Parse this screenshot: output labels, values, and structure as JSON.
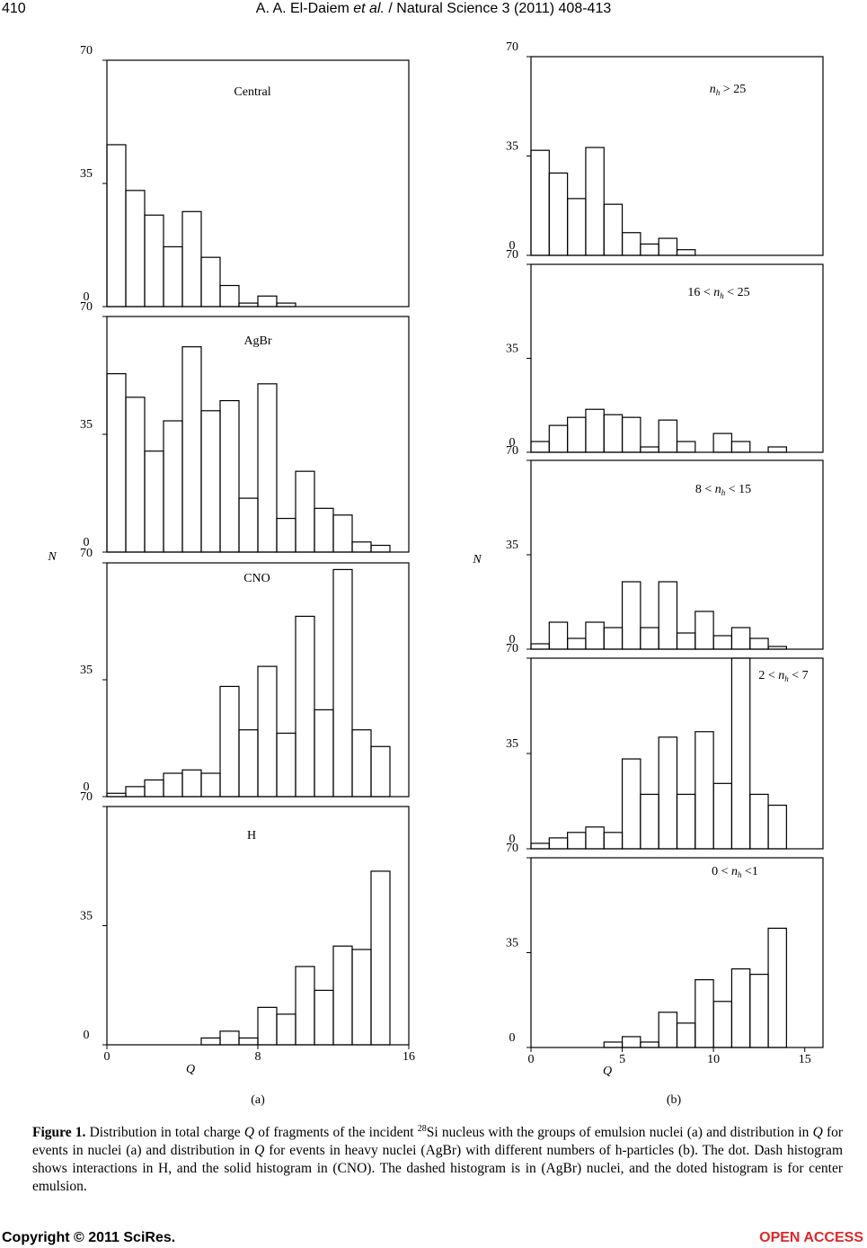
{
  "header": {
    "page": "410",
    "title": [
      {
        "text": "A. A. El-Daiem "
      },
      {
        "text": "et al.",
        "style": "italic"
      },
      {
        "text": " / Natural Science 3 (2011) 408-413"
      }
    ]
  },
  "chart_data": [
    {
      "type": "histogram",
      "title": "Central",
      "bins": [
        0,
        1,
        2,
        3,
        4,
        5,
        6,
        7,
        8,
        9,
        10,
        11,
        12,
        13,
        14,
        15,
        16
      ],
      "values": [
        46,
        33,
        26,
        17,
        27,
        14,
        6,
        1,
        3,
        1,
        0,
        0,
        0,
        0,
        0,
        0
      ],
      "xlim": [
        0,
        16
      ],
      "ylim": [
        0,
        70
      ],
      "yticks": [
        0,
        35,
        70
      ]
    },
    {
      "type": "histogram",
      "title": "AgBr",
      "bins": [
        0,
        1,
        2,
        3,
        4,
        5,
        6,
        7,
        8,
        9,
        10,
        11,
        12,
        13,
        14,
        15,
        16
      ],
      "values": [
        53,
        46,
        30,
        39,
        61,
        42,
        45,
        16,
        50,
        10,
        24,
        13,
        11,
        3,
        2,
        0
      ],
      "xlim": [
        0,
        16
      ],
      "ylim": [
        0,
        70
      ],
      "yticks": [
        0,
        35,
        70
      ]
    },
    {
      "type": "histogram",
      "title": "CNO",
      "bins": [
        0,
        1,
        2,
        3,
        4,
        5,
        6,
        7,
        8,
        9,
        10,
        11,
        12,
        13,
        14,
        15,
        16
      ],
      "values": [
        1,
        3,
        5,
        7,
        8,
        7,
        33,
        20,
        39,
        19,
        54,
        26,
        68,
        20,
        15,
        0
      ],
      "xlim": [
        0,
        16
      ],
      "ylim": [
        0,
        70
      ],
      "yticks": [
        0,
        35,
        70
      ]
    },
    {
      "type": "histogram",
      "title": "H",
      "bins": [
        0,
        1,
        2,
        3,
        4,
        5,
        6,
        7,
        8,
        9,
        10,
        11,
        12,
        13,
        14,
        15,
        16
      ],
      "values": [
        0,
        0,
        0,
        0,
        0,
        2,
        4,
        2,
        11,
        9,
        23,
        16,
        29,
        28,
        51,
        0
      ],
      "xlim": [
        0,
        16
      ],
      "ylim": [
        0,
        70
      ],
      "yticks": [
        0,
        35,
        70
      ],
      "xticks": [
        0,
        8,
        16
      ]
    },
    {
      "type": "histogram",
      "title": {
        "symbol": "n",
        "subscript": "h",
        "suffix": " > 25"
      },
      "bins": [
        0,
        1,
        2,
        3,
        4,
        5,
        6,
        7,
        8,
        9,
        10,
        11,
        12,
        13,
        14
      ],
      "values": [
        37,
        29,
        20,
        38,
        18,
        8,
        4,
        6,
        2,
        0,
        0,
        0,
        0,
        0
      ],
      "xlim": [
        0,
        16
      ],
      "ylim": [
        0,
        70
      ],
      "yticks": [
        0,
        35,
        70
      ]
    },
    {
      "type": "histogram",
      "title": {
        "prefix": "16 < ",
        "symbol": "n",
        "subscript": "h",
        "suffix": " < 25"
      },
      "bins": [
        0,
        1,
        2,
        3,
        4,
        5,
        6,
        7,
        8,
        9,
        10,
        11,
        12,
        13,
        14
      ],
      "values": [
        4,
        10,
        13,
        16,
        14,
        13,
        2,
        12,
        4,
        0,
        7,
        4,
        0,
        2
      ],
      "xlim": [
        0,
        16
      ],
      "ylim": [
        0,
        70
      ],
      "yticks": [
        0,
        35,
        70
      ]
    },
    {
      "type": "histogram",
      "title": {
        "prefix": "8 < ",
        "symbol": "n",
        "subscript": "h",
        "suffix": " < 15"
      },
      "bins": [
        0,
        1,
        2,
        3,
        4,
        5,
        6,
        7,
        8,
        9,
        10,
        11,
        12,
        13,
        14
      ],
      "values": [
        2,
        10,
        4,
        10,
        8,
        25,
        8,
        25,
        6,
        14,
        5,
        8,
        4,
        1
      ],
      "xlim": [
        0,
        16
      ],
      "ylim": [
        0,
        70
      ],
      "yticks": [
        0,
        35,
        70
      ]
    },
    {
      "type": "histogram",
      "title": {
        "prefix": "2 < ",
        "symbol": "n",
        "subscript": "h",
        "suffix": " < 7"
      },
      "bins": [
        0,
        1,
        2,
        3,
        4,
        5,
        6,
        7,
        8,
        9,
        10,
        11,
        12,
        13,
        14
      ],
      "values": [
        2,
        4,
        6,
        8,
        6,
        33,
        20,
        41,
        20,
        43,
        24,
        70,
        20,
        16
      ],
      "xlim": [
        0,
        16
      ],
      "ylim": [
        0,
        70
      ],
      "yticks": [
        0,
        35,
        70
      ]
    },
    {
      "type": "histogram",
      "title": {
        "prefix": "0 < ",
        "symbol": "n",
        "subscript": "h",
        "suffix": " <1"
      },
      "bins": [
        0,
        1,
        2,
        3,
        4,
        5,
        6,
        7,
        8,
        9,
        10,
        11,
        12,
        13,
        14
      ],
      "values": [
        0,
        0,
        0,
        0,
        2,
        4,
        2,
        13,
        9,
        25,
        17,
        29,
        27,
        44
      ],
      "xlim": [
        0,
        16
      ],
      "ylim": [
        0,
        70
      ],
      "yticks": [
        0,
        35,
        70
      ],
      "xticks": [
        0,
        5,
        10,
        15
      ]
    }
  ],
  "figure": {
    "columns": [
      {
        "label": "(a)",
        "ylabel": "N",
        "xlabel": "Q"
      },
      {
        "label": "(b)",
        "ylabel": "N",
        "xlabel": "Q"
      }
    ],
    "caption": [
      {
        "text": "Figure 1.",
        "style": "bold"
      },
      {
        "text": " Distribution in total charge "
      },
      {
        "text": "Q",
        "style": "italic"
      },
      {
        "text": " of fragments of the incident "
      },
      {
        "text": "28",
        "style": "sup"
      },
      {
        "text": "Si nucleus with the groups of emulsion nuclei (a) and distribution in "
      },
      {
        "text": "Q",
        "style": "italic"
      },
      {
        "text": " for events in nuclei (a) and distribution in "
      },
      {
        "text": "Q",
        "style": "italic"
      },
      {
        "text": " for events in heavy nuclei (AgBr) with different numbers of h-particles (b). The dot. Dash histogram shows interactions in H, and the solid histogram in (CNO). The dashed histogram is in (AgBr) nuclei, and the doted histogram is for center emulsion."
      }
    ]
  },
  "footer": {
    "copyright": "Copyright © 2011 SciRes.",
    "access": "OPEN ACCESS"
  }
}
